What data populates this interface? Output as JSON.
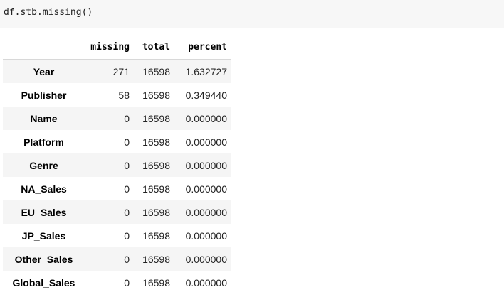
{
  "code_cell": {
    "source": "df.stb.missing()"
  },
  "table": {
    "columns": [
      "missing",
      "total",
      "percent"
    ],
    "rows": [
      {
        "label": "Year",
        "missing": "271",
        "total": "16598",
        "percent": "1.632727"
      },
      {
        "label": "Publisher",
        "missing": "58",
        "total": "16598",
        "percent": "0.349440"
      },
      {
        "label": "Name",
        "missing": "0",
        "total": "16598",
        "percent": "0.000000"
      },
      {
        "label": "Platform",
        "missing": "0",
        "total": "16598",
        "percent": "0.000000"
      },
      {
        "label": "Genre",
        "missing": "0",
        "total": "16598",
        "percent": "0.000000"
      },
      {
        "label": "NA_Sales",
        "missing": "0",
        "total": "16598",
        "percent": "0.000000"
      },
      {
        "label": "EU_Sales",
        "missing": "0",
        "total": "16598",
        "percent": "0.000000"
      },
      {
        "label": "JP_Sales",
        "missing": "0",
        "total": "16598",
        "percent": "0.000000"
      },
      {
        "label": "Other_Sales",
        "missing": "0",
        "total": "16598",
        "percent": "0.000000"
      },
      {
        "label": "Global_Sales",
        "missing": "0",
        "total": "16598",
        "percent": "0.000000"
      }
    ]
  }
}
